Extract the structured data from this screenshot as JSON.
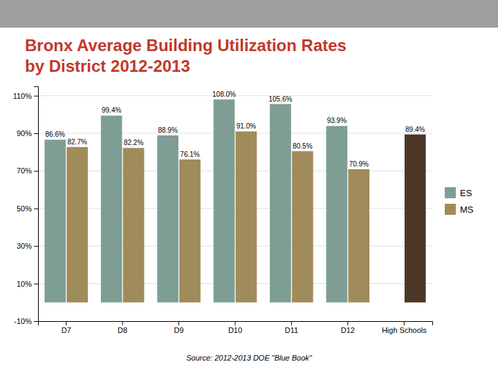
{
  "chart_data": {
    "type": "bar",
    "title": "Bronx Average Building Utilization Rates",
    "subtitle": "by District 2012-2013",
    "categories": [
      "D7",
      "D8",
      "D9",
      "D10",
      "D11",
      "D12",
      "High Schools"
    ],
    "series": [
      {
        "name": "ES",
        "color": "#7E9E95",
        "values": [
          86.6,
          99.4,
          88.9,
          108.0,
          105.6,
          93.9,
          null
        ],
        "value_labels": [
          "86.6%",
          "99.4%",
          "88.9%",
          "108.0%",
          "105.6%",
          "93.9%",
          null
        ]
      },
      {
        "name": "MS",
        "color": "#A08C5A",
        "colors": [
          "#A08C5A",
          "#A08C5A",
          "#A08C5A",
          "#A08C5A",
          "#A08C5A",
          "#A08C5A",
          "#4A3728"
        ],
        "values": [
          82.7,
          82.2,
          76.1,
          91.0,
          80.5,
          70.9,
          89.4
        ],
        "value_labels": [
          "82.7%",
          "82.2%",
          "76.1%",
          "91.0%",
          "80.5%",
          "70.9%",
          "89.4%"
        ]
      }
    ],
    "ylim": [
      -10,
      115
    ],
    "yticks": [
      {
        "value": -10,
        "label": "-10%"
      },
      {
        "value": 10,
        "label": "10%"
      },
      {
        "value": 30,
        "label": "30%"
      },
      {
        "value": 50,
        "label": "50%"
      },
      {
        "value": 70,
        "label": "70%"
      },
      {
        "value": 90,
        "label": "90%"
      },
      {
        "value": 110,
        "label": "110%"
      }
    ],
    "grid": true,
    "legend": "right",
    "data_labels": true,
    "annotations": [
      "Source: 2012-2013 DOE \"Blue Book\""
    ]
  }
}
